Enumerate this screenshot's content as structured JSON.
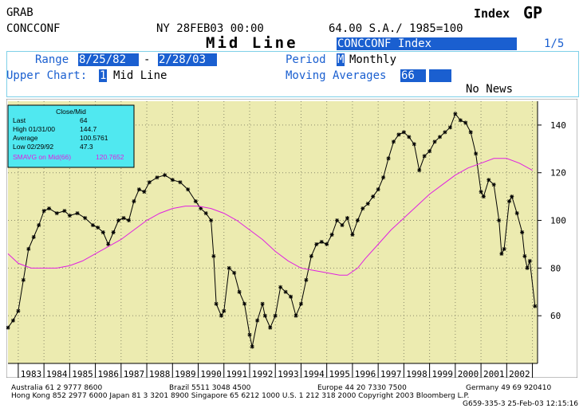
{
  "header": {
    "line1_left": "GRAB",
    "line2_left": "CONCCONF",
    "date": "NY 28FEB03 00:00",
    "info": "64.00 S.A./ 1985=100",
    "index_label": "Index",
    "function": "GP",
    "title": "Mid Line",
    "security": "CONCCONF Index",
    "page": "1/5"
  },
  "controls": {
    "range_label": "Range",
    "range_start": "8/25/82",
    "range_dash": "-",
    "range_end": "2/28/03",
    "period_label": "Period",
    "period_code": "M",
    "period_name": "Monthly",
    "upper_label": "Upper Chart:",
    "upper_code": "1",
    "upper_name": "Mid Line",
    "ma_label": "Moving Averages",
    "ma_value": "66",
    "news": "No News"
  },
  "legend": {
    "title": "Close/Mid",
    "rows": [
      {
        "label": "Last",
        "value": "64"
      },
      {
        "label": "High 01/31/00",
        "value": "144.7"
      },
      {
        "label": "Average",
        "value": "100.5761"
      },
      {
        "label": "Low 02/29/92",
        "value": "47.3"
      }
    ],
    "ma_label": "SMAVG on Mid(66)",
    "ma_value": "120.7652"
  },
  "colors": {
    "plot_bg": "#ecebb0",
    "price": "#000000",
    "moving_average": "#e020e0",
    "legend_bg": "#50e8f0",
    "highlight": "#1a5fd0"
  },
  "chart_data": {
    "type": "line",
    "xlim": [
      1982.6,
      2003.2
    ],
    "ylim": [
      40,
      150
    ],
    "yticks": [
      60,
      80,
      100,
      120,
      140
    ],
    "year_labels": [
      "1983",
      "1984",
      "1985",
      "1986",
      "1987",
      "1988",
      "1989",
      "1990",
      "1991",
      "1992",
      "1993",
      "1994",
      "1995",
      "1996",
      "1997",
      "1998",
      "1999",
      "2000",
      "2001",
      "2002"
    ],
    "grid": true,
    "series": [
      {
        "kind": "price",
        "points": [
          [
            1982.6,
            55
          ],
          [
            1982.8,
            58
          ],
          [
            1983.0,
            62
          ],
          [
            1983.2,
            75
          ],
          [
            1983.4,
            88
          ],
          [
            1983.6,
            93
          ],
          [
            1983.8,
            98
          ],
          [
            1984.0,
            104
          ],
          [
            1984.2,
            105
          ],
          [
            1984.5,
            103
          ],
          [
            1984.8,
            104
          ],
          [
            1985.0,
            102
          ],
          [
            1985.3,
            103
          ],
          [
            1985.6,
            101
          ],
          [
            1985.9,
            98
          ],
          [
            1986.1,
            97
          ],
          [
            1986.3,
            95
          ],
          [
            1986.5,
            90
          ],
          [
            1986.7,
            95
          ],
          [
            1986.9,
            100
          ],
          [
            1987.1,
            101
          ],
          [
            1987.3,
            100
          ],
          [
            1987.5,
            108
          ],
          [
            1987.7,
            113
          ],
          [
            1987.9,
            112
          ],
          [
            1988.1,
            116
          ],
          [
            1988.4,
            118
          ],
          [
            1988.7,
            119
          ],
          [
            1989.0,
            117
          ],
          [
            1989.3,
            116
          ],
          [
            1989.6,
            113
          ],
          [
            1989.9,
            108
          ],
          [
            1990.1,
            105
          ],
          [
            1990.3,
            103
          ],
          [
            1990.5,
            100
          ],
          [
            1990.6,
            85
          ],
          [
            1990.7,
            65
          ],
          [
            1990.9,
            60
          ],
          [
            1991.0,
            62
          ],
          [
            1991.2,
            80
          ],
          [
            1991.4,
            78
          ],
          [
            1991.6,
            70
          ],
          [
            1991.8,
            65
          ],
          [
            1992.0,
            52
          ],
          [
            1992.1,
            47
          ],
          [
            1992.3,
            58
          ],
          [
            1992.5,
            65
          ],
          [
            1992.6,
            60
          ],
          [
            1992.8,
            55
          ],
          [
            1993.0,
            60
          ],
          [
            1993.2,
            72
          ],
          [
            1993.4,
            70
          ],
          [
            1993.6,
            68
          ],
          [
            1993.8,
            60
          ],
          [
            1994.0,
            65
          ],
          [
            1994.2,
            75
          ],
          [
            1994.4,
            85
          ],
          [
            1994.6,
            90
          ],
          [
            1994.8,
            91
          ],
          [
            1995.0,
            90
          ],
          [
            1995.2,
            94
          ],
          [
            1995.4,
            100
          ],
          [
            1995.6,
            98
          ],
          [
            1995.8,
            101
          ],
          [
            1996.0,
            94
          ],
          [
            1996.2,
            100
          ],
          [
            1996.4,
            105
          ],
          [
            1996.6,
            107
          ],
          [
            1996.8,
            110
          ],
          [
            1997.0,
            113
          ],
          [
            1997.2,
            118
          ],
          [
            1997.4,
            126
          ],
          [
            1997.6,
            133
          ],
          [
            1997.8,
            136
          ],
          [
            1998.0,
            137
          ],
          [
            1998.2,
            135
          ],
          [
            1998.4,
            132
          ],
          [
            1998.6,
            121
          ],
          [
            1998.8,
            127
          ],
          [
            1999.0,
            129
          ],
          [
            1999.2,
            133
          ],
          [
            1999.4,
            135
          ],
          [
            1999.6,
            137
          ],
          [
            1999.8,
            139
          ],
          [
            2000.0,
            144.7
          ],
          [
            2000.2,
            142
          ],
          [
            2000.4,
            141
          ],
          [
            2000.6,
            137
          ],
          [
            2000.8,
            128
          ],
          [
            2001.0,
            112
          ],
          [
            2001.1,
            110
          ],
          [
            2001.3,
            117
          ],
          [
            2001.5,
            115
          ],
          [
            2001.7,
            100
          ],
          [
            2001.8,
            86
          ],
          [
            2001.9,
            88
          ],
          [
            2002.1,
            108
          ],
          [
            2002.2,
            110
          ],
          [
            2002.4,
            103
          ],
          [
            2002.6,
            95
          ],
          [
            2002.7,
            85
          ],
          [
            2002.8,
            80
          ],
          [
            2002.9,
            83
          ],
          [
            2003.1,
            64
          ]
        ]
      },
      {
        "kind": "moving_average",
        "points": [
          [
            1982.6,
            86
          ],
          [
            1983.0,
            82
          ],
          [
            1983.5,
            80
          ],
          [
            1984.0,
            80
          ],
          [
            1984.5,
            80
          ],
          [
            1985.0,
            81
          ],
          [
            1985.5,
            83
          ],
          [
            1986.0,
            86
          ],
          [
            1986.5,
            89
          ],
          [
            1987.0,
            92
          ],
          [
            1987.5,
            96
          ],
          [
            1988.0,
            100
          ],
          [
            1988.5,
            103
          ],
          [
            1989.0,
            105
          ],
          [
            1989.5,
            106
          ],
          [
            1990.0,
            106
          ],
          [
            1990.5,
            105
          ],
          [
            1991.0,
            103
          ],
          [
            1991.5,
            100
          ],
          [
            1992.0,
            96
          ],
          [
            1992.5,
            92
          ],
          [
            1993.0,
            87
          ],
          [
            1993.5,
            83
          ],
          [
            1994.0,
            80
          ],
          [
            1994.5,
            79
          ],
          [
            1995.0,
            78
          ],
          [
            1995.5,
            77
          ],
          [
            1995.8,
            77
          ],
          [
            1996.2,
            80
          ],
          [
            1996.5,
            84
          ],
          [
            1997.0,
            90
          ],
          [
            1997.5,
            96
          ],
          [
            1998.0,
            101
          ],
          [
            1998.5,
            106
          ],
          [
            1999.0,
            111
          ],
          [
            1999.5,
            115
          ],
          [
            2000.0,
            119
          ],
          [
            2000.5,
            122
          ],
          [
            2001.0,
            124
          ],
          [
            2001.5,
            126
          ],
          [
            2002.0,
            126
          ],
          [
            2002.5,
            124
          ],
          [
            2003.0,
            121
          ]
        ]
      }
    ]
  },
  "footer": {
    "line1a": "Australia 61 2 9777 8600",
    "line1b": "Brazil 5511 3048 4500",
    "line1c": "Europe 44 20 7330 7500",
    "line1d": "Germany 49 69 920410",
    "line2": "Hong Kong 852 2977 6000 Japan 81 3 3201 8900 Singapore 65 6212 1000 U.S. 1 212 318 2000 Copyright 2003 Bloomberg L.P.",
    "line3": "G659-335-3 25-Feb-03 12:15:16"
  }
}
